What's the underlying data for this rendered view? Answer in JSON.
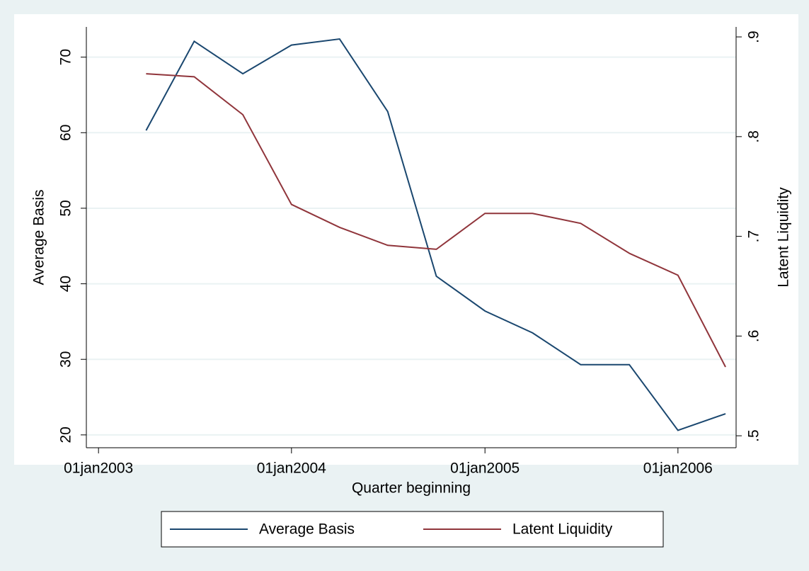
{
  "chart_data": {
    "type": "line",
    "x_label": "Quarter beginning",
    "y_label": "Average Basis",
    "y2_label": "Latent Liquidity",
    "x": [
      "01apr2003",
      "01jul2003",
      "01oct2003",
      "01jan2004",
      "01apr2004",
      "01jul2004",
      "01oct2004",
      "01jan2005",
      "01apr2005",
      "01jul2005",
      "01oct2005",
      "01jan2006",
      "01apr2006"
    ],
    "series": [
      {
        "name": "Average Basis",
        "color": "#1a476f",
        "values": [
          60.3,
          72.1,
          67.8,
          71.6,
          72.4,
          62.8,
          41.0,
          36.4,
          33.5,
          29.3,
          29.3,
          20.6,
          22.8
        ]
      },
      {
        "name": "Latent Liquidity",
        "color": "#90353b",
        "axis": "y2",
        "values": [
          0.863,
          0.86,
          0.822,
          0.732,
          0.709,
          0.691,
          0.687,
          0.723,
          0.723,
          0.713,
          0.683,
          0.661,
          0.569
        ]
      }
    ],
    "xlim": [
      "09dec2002",
      "21apr2006"
    ],
    "xticks": [
      "01jan2003",
      "01jan2004",
      "01jan2005",
      "01jan2006"
    ],
    "ylim": [
      18.3,
      74.0
    ],
    "yticks": [
      20,
      30,
      40,
      50,
      60,
      70
    ],
    "y2lim": [
      0.488,
      0.91
    ],
    "y2ticks": [
      {
        "value": 0.5,
        "label": ".5"
      },
      {
        "value": 0.6,
        "label": ".6"
      },
      {
        "value": 0.7,
        "label": ".7"
      },
      {
        "value": 0.8,
        "label": ".8"
      },
      {
        "value": 0.9,
        "label": ".9"
      }
    ],
    "grid": true,
    "legend": "bottom"
  }
}
